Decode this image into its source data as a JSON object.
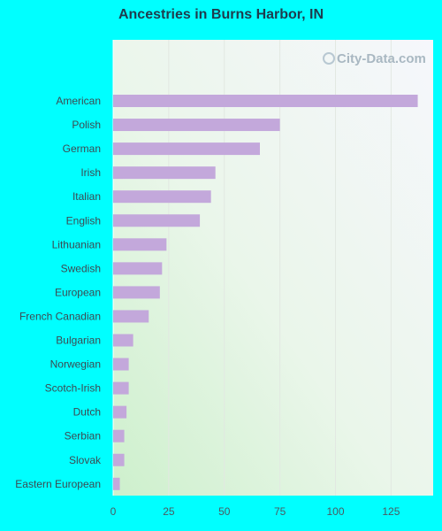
{
  "page": {
    "title": "Ancestries in Burns Harbor, IN",
    "watermark": "City-Data.com"
  },
  "colors": {
    "background": "#00ffff",
    "bar": "#c3a8db",
    "plot_bg_top": "#f4f6fb",
    "plot_bg_bottom": "#d4f0d2"
  },
  "chart_data": {
    "type": "bar",
    "orientation": "horizontal",
    "title": "Ancestries in Burns Harbor, IN",
    "categories": [
      "American",
      "Polish",
      "German",
      "Irish",
      "Italian",
      "English",
      "Lithuanian",
      "Swedish",
      "European",
      "French Canadian",
      "Bulgarian",
      "Norwegian",
      "Scotch-Irish",
      "Dutch",
      "Serbian",
      "Slovak",
      "Eastern European"
    ],
    "values": [
      137,
      75,
      66,
      46,
      44,
      39,
      24,
      22,
      21,
      16,
      9,
      7,
      7,
      6,
      5,
      5,
      3
    ],
    "xticks": [
      0,
      25,
      50,
      75,
      100,
      125
    ],
    "xlim": [
      0,
      143
    ],
    "grid": true
  }
}
